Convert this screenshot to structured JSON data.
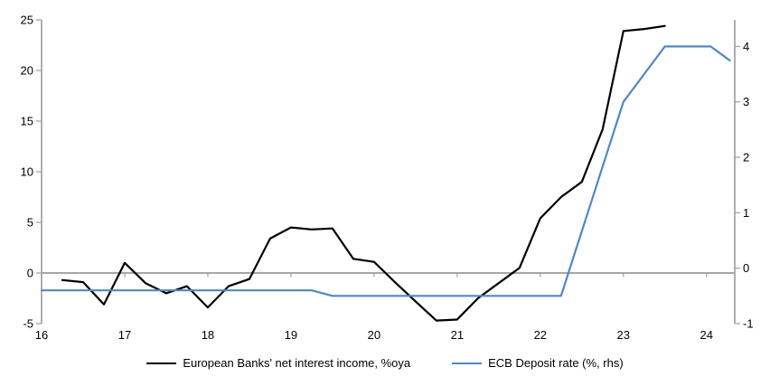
{
  "chart_data": {
    "type": "line",
    "title": "",
    "grid": "zero-line-only",
    "legend_position": "bottom",
    "colors": {
      "axis": "#A6A6A6",
      "text": "#000000"
    },
    "x_axis": {
      "ticks": [
        16,
        17,
        18,
        19,
        20,
        21,
        22,
        23,
        24
      ],
      "tick_labels": [
        "16",
        "17",
        "18",
        "19",
        "20",
        "21",
        "22",
        "23",
        "24"
      ],
      "range": [
        16,
        24.34
      ]
    },
    "left_axis": {
      "ticks": [
        -5,
        0,
        5,
        10,
        15,
        20,
        25
      ],
      "tick_labels": [
        "-5",
        "0",
        "5",
        "10",
        "15",
        "20",
        "25"
      ],
      "range": [
        -5,
        25
      ]
    },
    "right_axis": {
      "ticks": [
        -1,
        0,
        1,
        2,
        3,
        4
      ],
      "tick_labels": [
        "-1",
        "0",
        "1",
        "2",
        "3",
        "4"
      ],
      "range": [
        -1,
        4.48
      ]
    },
    "series": [
      {
        "name": "European Banks' net interest income, %oya",
        "axis": "left",
        "color": "#000000",
        "x": [
          16.25,
          16.5,
          16.75,
          17.0,
          17.25,
          17.5,
          17.75,
          18.0,
          18.25,
          18.5,
          18.75,
          19.0,
          19.25,
          19.5,
          19.75,
          20.0,
          20.25,
          20.5,
          20.75,
          21.0,
          21.25,
          21.5,
          21.75,
          22.0,
          22.25,
          22.5,
          22.75,
          23.0,
          23.25,
          23.5
        ],
        "values": [
          -0.7,
          -0.9,
          -3.1,
          1.0,
          -1.0,
          -2.0,
          -1.3,
          -3.4,
          -1.3,
          -0.6,
          3.4,
          4.5,
          4.3,
          4.4,
          1.4,
          1.1,
          -0.9,
          -2.8,
          -4.7,
          -4.6,
          -2.5,
          -1.0,
          0.5,
          5.4,
          7.5,
          9.0,
          14.2,
          23.9,
          24.1,
          24.4
        ]
      },
      {
        "name": "ECB Deposit rate (%, rhs)",
        "axis": "right",
        "color": "#5286C5",
        "x": [
          16.0,
          19.25,
          19.5,
          22.25,
          23.0,
          23.5,
          24.05,
          24.28
        ],
        "values": [
          -0.4,
          -0.4,
          -0.5,
          -0.5,
          3.0,
          4.0,
          4.0,
          3.75
        ]
      }
    ]
  }
}
